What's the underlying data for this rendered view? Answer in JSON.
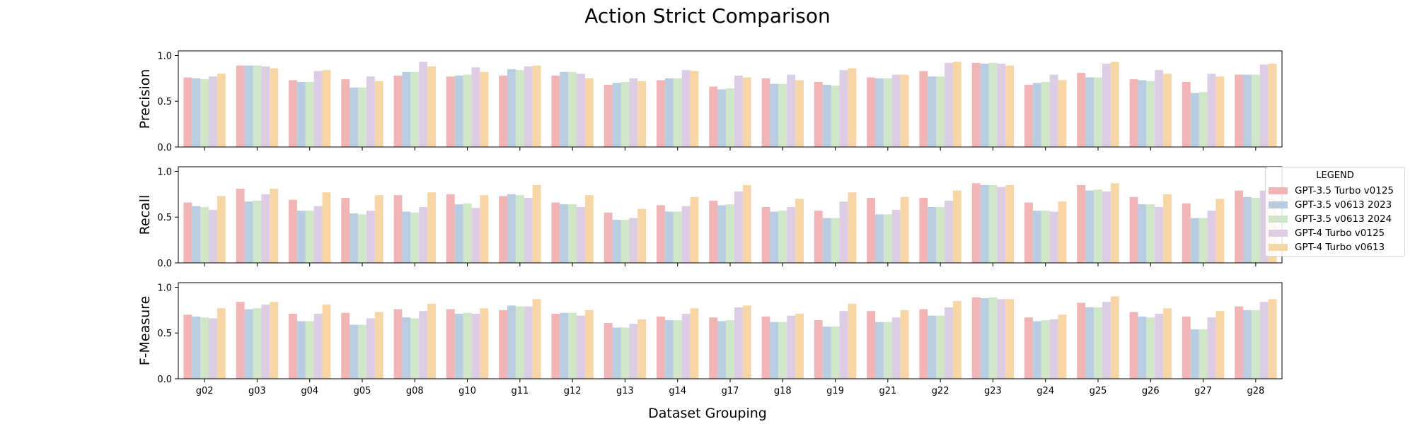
{
  "chart_data": {
    "type": "bar",
    "title": "Action Strict Comparison",
    "xlabel": "Dataset Grouping",
    "categories": [
      "g02",
      "g03",
      "g04",
      "g05",
      "g08",
      "g10",
      "g11",
      "g12",
      "g13",
      "g14",
      "g17",
      "g18",
      "g19",
      "g21",
      "g22",
      "g23",
      "g24",
      "g25",
      "g26",
      "g27",
      "g28"
    ],
    "legend": {
      "title": "LEGEND",
      "placement": "right",
      "entries": [
        {
          "name": "GPT-3.5 Turbo v0125",
          "color": "#f2b5b5"
        },
        {
          "name": "GPT-3.5 v0613 2023",
          "color": "#b8cce2"
        },
        {
          "name": "GPT-3.5 v0613 2024",
          "color": "#cfe6c8"
        },
        {
          "name": "GPT-4 Turbo v0125",
          "color": "#dccde4"
        },
        {
          "name": "GPT-4 Turbo v0613",
          "color": "#f7d6a5"
        }
      ]
    },
    "ylim": [
      0,
      1.05
    ],
    "yticks": [
      "0.0",
      "0.5",
      "1.0"
    ],
    "grid": false,
    "panels": [
      {
        "ylabel": "Precision",
        "series": [
          {
            "name": "GPT-3.5 Turbo v0125",
            "values": [
              0.76,
              0.89,
              0.73,
              0.74,
              0.78,
              0.77,
              0.78,
              0.78,
              0.68,
              0.73,
              0.66,
              0.75,
              0.71,
              0.76,
              0.83,
              0.92,
              0.68,
              0.81,
              0.74,
              0.71,
              0.79
            ]
          },
          {
            "name": "GPT-3.5 v0613 2023",
            "values": [
              0.75,
              0.89,
              0.71,
              0.65,
              0.82,
              0.78,
              0.85,
              0.82,
              0.7,
              0.75,
              0.63,
              0.69,
              0.68,
              0.75,
              0.77,
              0.91,
              0.7,
              0.76,
              0.73,
              0.59,
              0.79
            ]
          },
          {
            "name": "GPT-3.5 v0613 2024",
            "values": [
              0.74,
              0.89,
              0.71,
              0.65,
              0.82,
              0.79,
              0.84,
              0.82,
              0.71,
              0.75,
              0.64,
              0.69,
              0.67,
              0.75,
              0.77,
              0.92,
              0.71,
              0.76,
              0.72,
              0.6,
              0.79
            ]
          },
          {
            "name": "GPT-4 Turbo v0125",
            "values": [
              0.77,
              0.88,
              0.83,
              0.77,
              0.93,
              0.87,
              0.88,
              0.8,
              0.75,
              0.84,
              0.78,
              0.79,
              0.84,
              0.79,
              0.92,
              0.91,
              0.79,
              0.91,
              0.84,
              0.8,
              0.9
            ]
          },
          {
            "name": "GPT-4 Turbo v0613",
            "values": [
              0.8,
              0.86,
              0.84,
              0.72,
              0.88,
              0.82,
              0.89,
              0.75,
              0.72,
              0.83,
              0.76,
              0.73,
              0.86,
              0.79,
              0.93,
              0.89,
              0.73,
              0.93,
              0.8,
              0.77,
              0.91
            ]
          }
        ]
      },
      {
        "ylabel": "Recall",
        "series": [
          {
            "name": "GPT-3.5 Turbo v0125",
            "values": [
              0.66,
              0.81,
              0.69,
              0.71,
              0.74,
              0.75,
              0.73,
              0.66,
              0.55,
              0.63,
              0.68,
              0.61,
              0.57,
              0.71,
              0.71,
              0.87,
              0.66,
              0.85,
              0.72,
              0.65,
              0.79
            ]
          },
          {
            "name": "GPT-3.5 v0613 2023",
            "values": [
              0.62,
              0.67,
              0.57,
              0.54,
              0.56,
              0.64,
              0.75,
              0.64,
              0.47,
              0.56,
              0.63,
              0.56,
              0.49,
              0.53,
              0.61,
              0.85,
              0.57,
              0.79,
              0.64,
              0.49,
              0.72
            ]
          },
          {
            "name": "GPT-3.5 v0613 2024",
            "values": [
              0.61,
              0.68,
              0.57,
              0.53,
              0.55,
              0.65,
              0.74,
              0.64,
              0.47,
              0.56,
              0.64,
              0.57,
              0.49,
              0.53,
              0.61,
              0.85,
              0.57,
              0.8,
              0.64,
              0.49,
              0.71
            ]
          },
          {
            "name": "GPT-4 Turbo v0125",
            "values": [
              0.58,
              0.75,
              0.62,
              0.57,
              0.61,
              0.6,
              0.71,
              0.61,
              0.49,
              0.62,
              0.78,
              0.61,
              0.67,
              0.58,
              0.68,
              0.83,
              0.56,
              0.78,
              0.61,
              0.57,
              0.79
            ]
          },
          {
            "name": "GPT-4 Turbo v0613",
            "values": [
              0.73,
              0.81,
              0.77,
              0.74,
              0.77,
              0.74,
              0.85,
              0.74,
              0.59,
              0.72,
              0.85,
              0.7,
              0.77,
              0.72,
              0.79,
              0.85,
              0.67,
              0.87,
              0.75,
              0.7,
              0.7
            ]
          }
        ]
      },
      {
        "ylabel": "F-Measure",
        "series": [
          {
            "name": "GPT-3.5 Turbo v0125",
            "values": [
              0.7,
              0.84,
              0.71,
              0.72,
              0.76,
              0.76,
              0.75,
              0.71,
              0.61,
              0.68,
              0.67,
              0.68,
              0.64,
              0.74,
              0.76,
              0.89,
              0.67,
              0.83,
              0.73,
              0.68,
              0.79
            ]
          },
          {
            "name": "GPT-3.5 v0613 2023",
            "values": [
              0.68,
              0.76,
              0.63,
              0.59,
              0.67,
              0.71,
              0.8,
              0.72,
              0.56,
              0.64,
              0.63,
              0.62,
              0.57,
              0.62,
              0.69,
              0.88,
              0.63,
              0.78,
              0.68,
              0.54,
              0.75
            ]
          },
          {
            "name": "GPT-3.5 v0613 2024",
            "values": [
              0.67,
              0.77,
              0.63,
              0.59,
              0.66,
              0.72,
              0.79,
              0.72,
              0.56,
              0.64,
              0.64,
              0.62,
              0.57,
              0.62,
              0.69,
              0.89,
              0.64,
              0.78,
              0.67,
              0.54,
              0.75
            ]
          },
          {
            "name": "GPT-4 Turbo v0125",
            "values": [
              0.66,
              0.81,
              0.71,
              0.66,
              0.74,
              0.71,
              0.79,
              0.69,
              0.6,
              0.71,
              0.78,
              0.69,
              0.74,
              0.67,
              0.78,
              0.87,
              0.65,
              0.84,
              0.71,
              0.67,
              0.84
            ]
          },
          {
            "name": "GPT-4 Turbo v0613",
            "values": [
              0.77,
              0.84,
              0.81,
              0.73,
              0.82,
              0.77,
              0.87,
              0.75,
              0.65,
              0.77,
              0.8,
              0.71,
              0.82,
              0.75,
              0.85,
              0.87,
              0.7,
              0.9,
              0.77,
              0.74,
              0.87
            ]
          }
        ]
      }
    ]
  }
}
